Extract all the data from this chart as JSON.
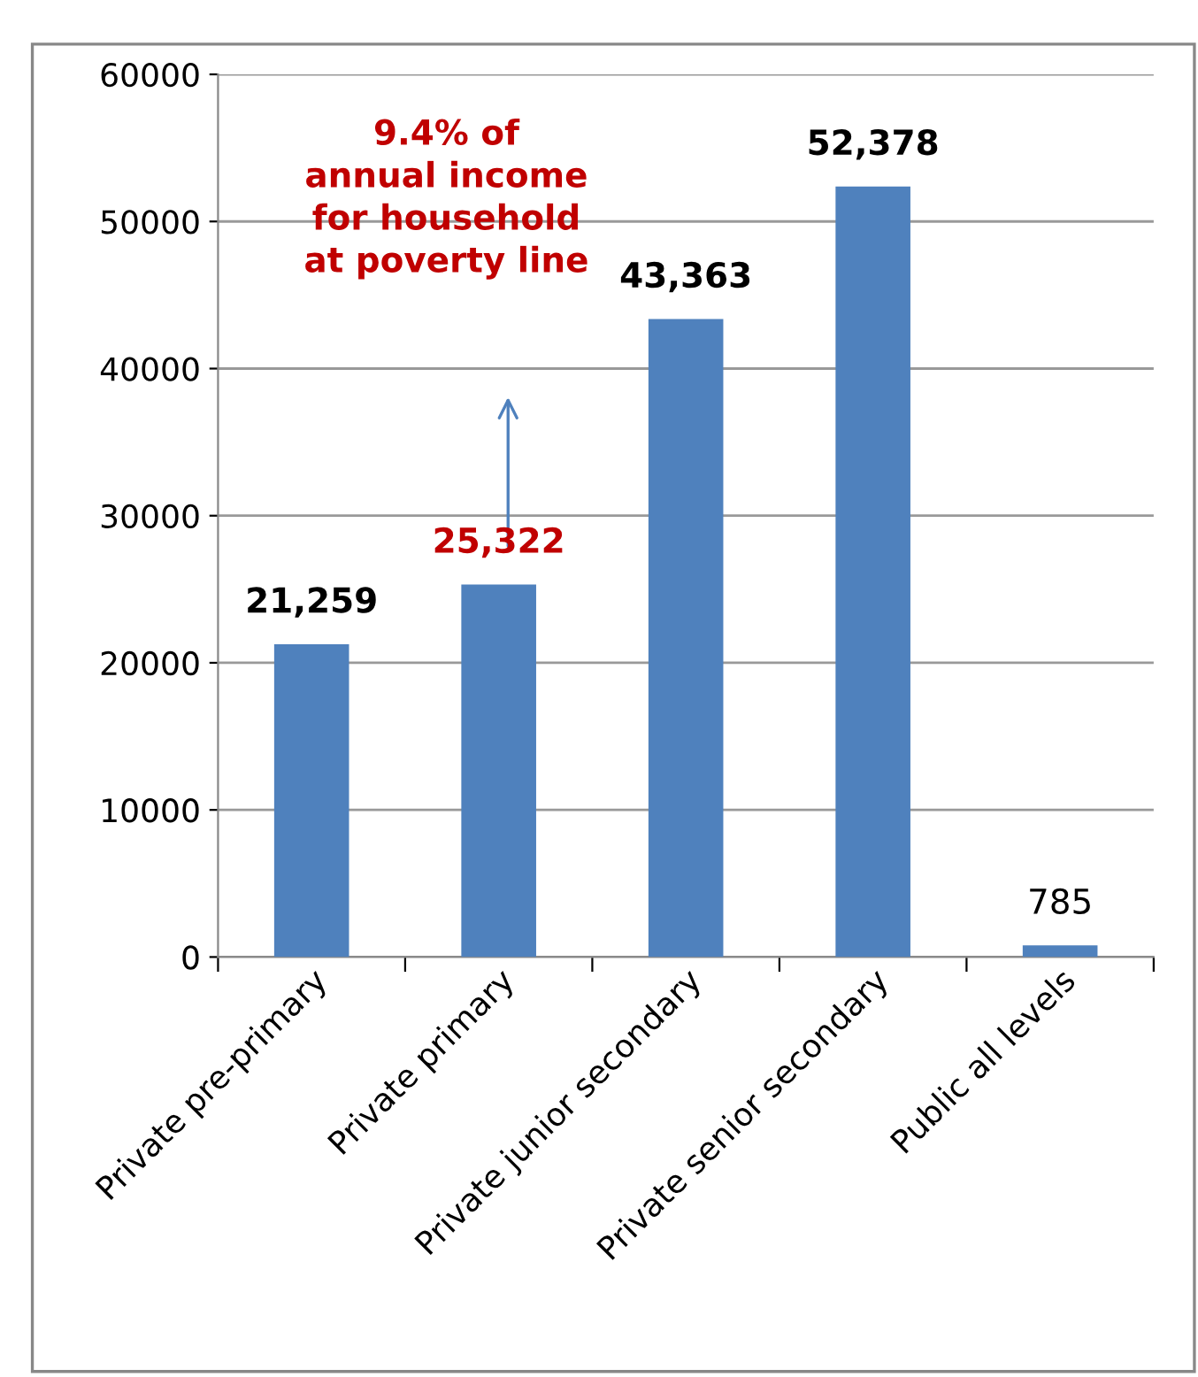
{
  "chart_data": {
    "type": "bar",
    "categories": [
      "Private pre-primary",
      "Private primary",
      "Private junior secondary",
      "Private senior secondary",
      "Public all levels"
    ],
    "values": [
      21259,
      25322,
      43363,
      52378,
      785
    ],
    "value_labels": [
      "21,259",
      "25,322",
      "43,363",
      "52,378",
      "785"
    ],
    "color": "#4f81bd",
    "ylim": [
      0,
      60000
    ],
    "yticks": [
      0,
      10000,
      20000,
      30000,
      40000,
      50000,
      60000
    ],
    "grid": "y",
    "annotations": [
      "9.4% of\nannual income\nfor household\nat poverty line"
    ]
  }
}
